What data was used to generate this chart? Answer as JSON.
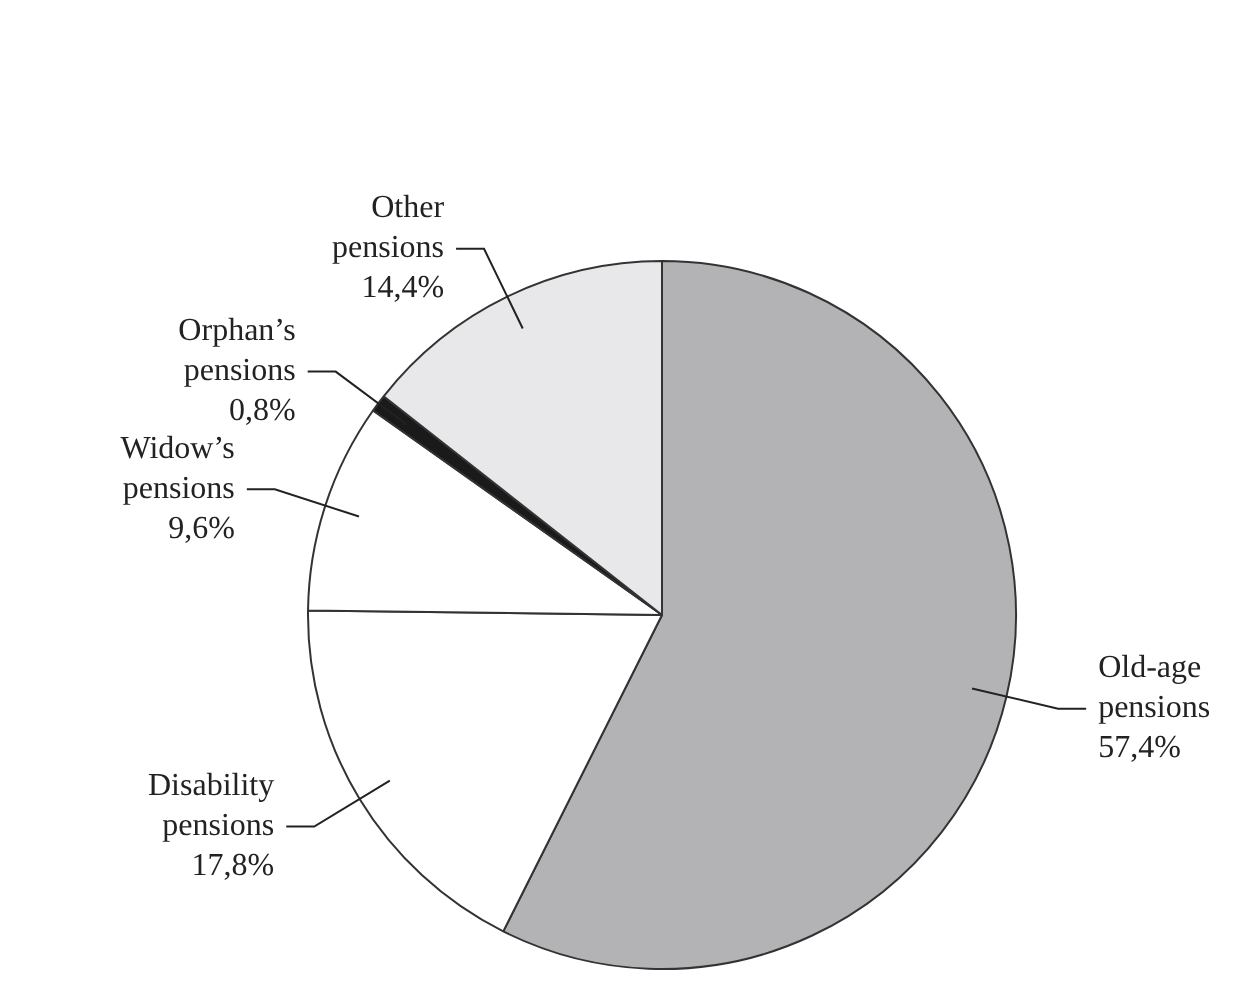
{
  "chart_data": {
    "type": "pie",
    "categories": [
      "Old-age pensions",
      "Disability pensions",
      "Widow’s pensions",
      "Orphan’s pensions",
      "Other pensions"
    ],
    "values": [
      57.4,
      17.8,
      9.6,
      0.8,
      14.4
    ],
    "value_labels": [
      "57,4%",
      "17,8%",
      "9,6%",
      "0,8%",
      "14,4%"
    ],
    "colors": [
      "#b3b3b5",
      "#ffffff",
      "#ffffff",
      "#1a1a1a",
      "#e8e8ea"
    ]
  }
}
